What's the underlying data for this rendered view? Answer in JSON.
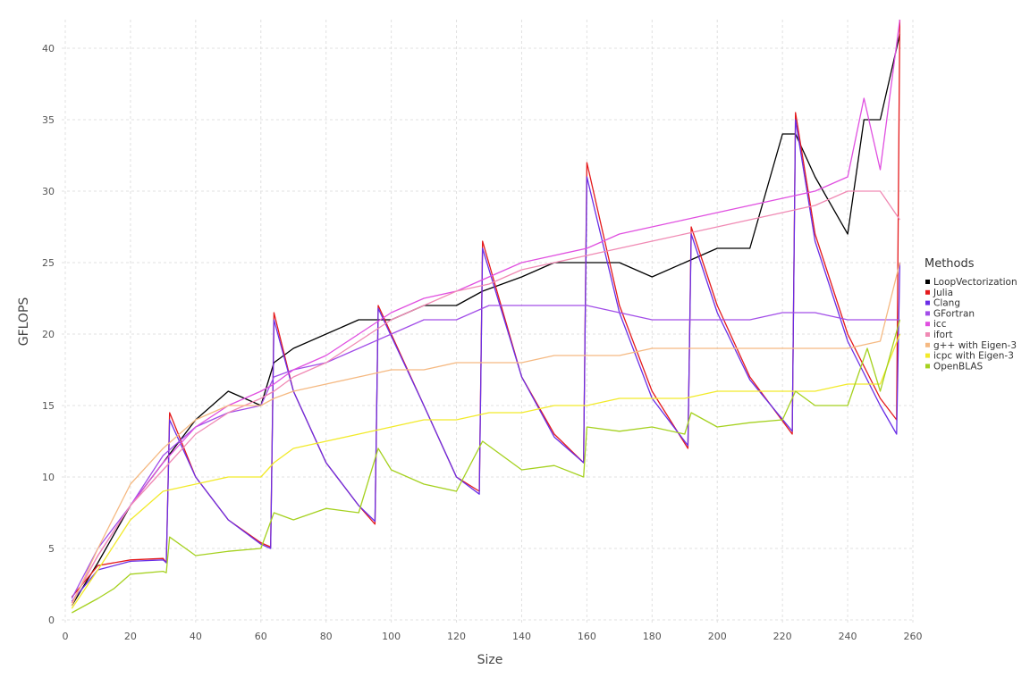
{
  "chart_data": {
    "type": "line",
    "title": "",
    "xlabel": "Size",
    "ylabel": "GFLOPS",
    "xlim": [
      0,
      260
    ],
    "ylim": [
      0,
      42
    ],
    "xticks": [
      0,
      20,
      40,
      60,
      80,
      100,
      120,
      140,
      160,
      180,
      200,
      220,
      240,
      260
    ],
    "yticks": [
      0,
      5,
      10,
      15,
      20,
      25,
      30,
      35,
      40
    ],
    "grid": true,
    "legend": {
      "title": "Methods",
      "position": "right"
    },
    "series": [
      {
        "name": "LoopVectorization",
        "color": "#000000",
        "points": [
          [
            2,
            1
          ],
          [
            10,
            4
          ],
          [
            20,
            8
          ],
          [
            30,
            11
          ],
          [
            40,
            14
          ],
          [
            50,
            16
          ],
          [
            60,
            15
          ],
          [
            64,
            18
          ],
          [
            70,
            19
          ],
          [
            80,
            20
          ],
          [
            90,
            21
          ],
          [
            96,
            21
          ],
          [
            100,
            21
          ],
          [
            110,
            22
          ],
          [
            120,
            22
          ],
          [
            128,
            23
          ],
          [
            140,
            24
          ],
          [
            150,
            25
          ],
          [
            160,
            25
          ],
          [
            170,
            25
          ],
          [
            180,
            24
          ],
          [
            190,
            25
          ],
          [
            200,
            26
          ],
          [
            210,
            26
          ],
          [
            220,
            34
          ],
          [
            224,
            34
          ],
          [
            230,
            31
          ],
          [
            240,
            27
          ],
          [
            245,
            35
          ],
          [
            250,
            35
          ],
          [
            255,
            40
          ],
          [
            256,
            41
          ]
        ]
      },
      {
        "name": "Julia",
        "color": "#e41a1c",
        "points": [
          [
            2,
            1.6
          ],
          [
            10,
            3.8
          ],
          [
            20,
            4.2
          ],
          [
            30,
            4.3
          ],
          [
            31,
            4
          ],
          [
            32,
            14.5
          ],
          [
            40,
            10
          ],
          [
            50,
            7
          ],
          [
            60,
            5.4
          ],
          [
            63,
            5.1
          ],
          [
            64,
            21.5
          ],
          [
            70,
            16
          ],
          [
            80,
            11
          ],
          [
            90,
            8
          ],
          [
            95,
            6.7
          ],
          [
            96,
            22
          ],
          [
            110,
            15
          ],
          [
            120,
            10
          ],
          [
            127,
            9
          ],
          [
            128,
            26.5
          ],
          [
            140,
            17
          ],
          [
            150,
            13
          ],
          [
            159,
            11
          ],
          [
            160,
            32
          ],
          [
            170,
            22
          ],
          [
            180,
            16
          ],
          [
            191,
            12
          ],
          [
            192,
            27.5
          ],
          [
            200,
            22
          ],
          [
            210,
            17
          ],
          [
            223,
            13
          ],
          [
            224,
            35.5
          ],
          [
            230,
            27
          ],
          [
            240,
            20
          ],
          [
            250,
            15.5
          ],
          [
            255,
            14
          ],
          [
            256,
            42
          ]
        ]
      },
      {
        "name": "Clang",
        "color": "#6a2ee6",
        "points": [
          [
            2,
            1.3
          ],
          [
            10,
            3.5
          ],
          [
            20,
            4.1
          ],
          [
            30,
            4.2
          ],
          [
            31,
            4
          ],
          [
            32,
            14
          ],
          [
            40,
            10
          ],
          [
            50,
            7
          ],
          [
            60,
            5.3
          ],
          [
            63,
            5
          ],
          [
            64,
            21
          ],
          [
            70,
            16
          ],
          [
            80,
            11
          ],
          [
            90,
            8
          ],
          [
            95,
            6.9
          ],
          [
            96,
            21.8
          ],
          [
            110,
            15
          ],
          [
            120,
            10
          ],
          [
            127,
            8.8
          ],
          [
            128,
            26
          ],
          [
            140,
            17
          ],
          [
            150,
            12.8
          ],
          [
            159,
            11
          ],
          [
            160,
            31
          ],
          [
            170,
            21.5
          ],
          [
            180,
            15.5
          ],
          [
            191,
            12.2
          ],
          [
            192,
            27
          ],
          [
            200,
            21.5
          ],
          [
            210,
            16.8
          ],
          [
            223,
            13.2
          ],
          [
            224,
            35
          ],
          [
            230,
            26.5
          ],
          [
            240,
            19.5
          ],
          [
            250,
            15
          ],
          [
            255,
            13
          ],
          [
            256,
            25
          ]
        ]
      },
      {
        "name": "GFortran",
        "color": "#a24ee8",
        "points": [
          [
            2,
            1.5
          ],
          [
            10,
            5
          ],
          [
            20,
            8
          ],
          [
            30,
            11.5
          ],
          [
            40,
            13.5
          ],
          [
            50,
            14.5
          ],
          [
            60,
            15
          ],
          [
            64,
            17
          ],
          [
            70,
            17.5
          ],
          [
            80,
            18
          ],
          [
            90,
            19
          ],
          [
            100,
            20
          ],
          [
            110,
            21
          ],
          [
            120,
            21
          ],
          [
            130,
            22
          ],
          [
            140,
            22
          ],
          [
            150,
            22
          ],
          [
            160,
            22
          ],
          [
            170,
            21.5
          ],
          [
            180,
            21
          ],
          [
            190,
            21
          ],
          [
            200,
            21
          ],
          [
            210,
            21
          ],
          [
            220,
            21.5
          ],
          [
            230,
            21.5
          ],
          [
            240,
            21
          ],
          [
            250,
            21
          ],
          [
            256,
            21
          ]
        ]
      },
      {
        "name": "icc",
        "color": "#e050e0",
        "points": [
          [
            2,
            1.2
          ],
          [
            10,
            4.5
          ],
          [
            20,
            8
          ],
          [
            30,
            11
          ],
          [
            40,
            13.5
          ],
          [
            50,
            15
          ],
          [
            60,
            16
          ],
          [
            64,
            16.5
          ],
          [
            70,
            17.5
          ],
          [
            80,
            18.5
          ],
          [
            90,
            20
          ],
          [
            100,
            21.5
          ],
          [
            110,
            22.5
          ],
          [
            120,
            23
          ],
          [
            130,
            24
          ],
          [
            140,
            25
          ],
          [
            150,
            25.5
          ],
          [
            160,
            26
          ],
          [
            170,
            27
          ],
          [
            180,
            27.5
          ],
          [
            190,
            28
          ],
          [
            200,
            28.5
          ],
          [
            210,
            29
          ],
          [
            220,
            29.5
          ],
          [
            230,
            30
          ],
          [
            240,
            31
          ],
          [
            245,
            36.5
          ],
          [
            250,
            31.5
          ],
          [
            256,
            42
          ]
        ]
      },
      {
        "name": "ifort",
        "color": "#f08ab4",
        "points": [
          [
            2,
            1.2
          ],
          [
            10,
            4.5
          ],
          [
            20,
            8
          ],
          [
            30,
            10.5
          ],
          [
            40,
            13
          ],
          [
            50,
            14.5
          ],
          [
            60,
            15.5
          ],
          [
            64,
            16
          ],
          [
            70,
            17
          ],
          [
            80,
            18
          ],
          [
            90,
            19.5
          ],
          [
            100,
            21
          ],
          [
            110,
            22
          ],
          [
            120,
            23
          ],
          [
            130,
            23.5
          ],
          [
            140,
            24.5
          ],
          [
            150,
            25
          ],
          [
            160,
            25.5
          ],
          [
            170,
            26
          ],
          [
            180,
            26.5
          ],
          [
            190,
            27
          ],
          [
            200,
            27.5
          ],
          [
            210,
            28
          ],
          [
            220,
            28.5
          ],
          [
            230,
            29
          ],
          [
            240,
            30
          ],
          [
            250,
            30
          ],
          [
            256,
            28
          ]
        ]
      },
      {
        "name": "g++ with Eigen-3",
        "color": "#f5b982",
        "points": [
          [
            2,
            1
          ],
          [
            10,
            5
          ],
          [
            20,
            9.5
          ],
          [
            30,
            12
          ],
          [
            40,
            14
          ],
          [
            50,
            15
          ],
          [
            60,
            15
          ],
          [
            64,
            15.5
          ],
          [
            70,
            16
          ],
          [
            80,
            16.5
          ],
          [
            90,
            17
          ],
          [
            100,
            17.5
          ],
          [
            110,
            17.5
          ],
          [
            120,
            18
          ],
          [
            130,
            18
          ],
          [
            140,
            18
          ],
          [
            150,
            18.5
          ],
          [
            160,
            18.5
          ],
          [
            170,
            18.5
          ],
          [
            180,
            19
          ],
          [
            190,
            19
          ],
          [
            200,
            19
          ],
          [
            210,
            19
          ],
          [
            220,
            19
          ],
          [
            230,
            19
          ],
          [
            240,
            19
          ],
          [
            250,
            19.5
          ],
          [
            256,
            25
          ]
        ]
      },
      {
        "name": "icpc with Eigen-3",
        "color": "#f2ea2a",
        "points": [
          [
            2,
            0.8
          ],
          [
            10,
            3.5
          ],
          [
            20,
            7
          ],
          [
            30,
            9
          ],
          [
            40,
            9.5
          ],
          [
            50,
            10
          ],
          [
            60,
            10
          ],
          [
            64,
            11
          ],
          [
            70,
            12
          ],
          [
            80,
            12.5
          ],
          [
            90,
            13
          ],
          [
            100,
            13.5
          ],
          [
            110,
            14
          ],
          [
            120,
            14
          ],
          [
            130,
            14.5
          ],
          [
            140,
            14.5
          ],
          [
            150,
            15
          ],
          [
            160,
            15
          ],
          [
            170,
            15.5
          ],
          [
            180,
            15.5
          ],
          [
            190,
            15.5
          ],
          [
            200,
            16
          ],
          [
            210,
            16
          ],
          [
            220,
            16
          ],
          [
            230,
            16
          ],
          [
            240,
            16.5
          ],
          [
            250,
            16.5
          ],
          [
            256,
            20
          ]
        ]
      },
      {
        "name": "OpenBLAS",
        "color": "#a5d11f",
        "points": [
          [
            2,
            0.5
          ],
          [
            10,
            1.5
          ],
          [
            15,
            2.2
          ],
          [
            20,
            3.2
          ],
          [
            30,
            3.4
          ],
          [
            31,
            3.3
          ],
          [
            32,
            5.8
          ],
          [
            40,
            4.5
          ],
          [
            50,
            4.8
          ],
          [
            60,
            5
          ],
          [
            64,
            7.5
          ],
          [
            70,
            7
          ],
          [
            80,
            7.8
          ],
          [
            90,
            7.5
          ],
          [
            96,
            12
          ],
          [
            100,
            10.5
          ],
          [
            110,
            9.5
          ],
          [
            120,
            9
          ],
          [
            128,
            12.5
          ],
          [
            140,
            10.5
          ],
          [
            150,
            10.8
          ],
          [
            159,
            10
          ],
          [
            160,
            13.5
          ],
          [
            170,
            13.2
          ],
          [
            180,
            13.5
          ],
          [
            190,
            13
          ],
          [
            192,
            14.5
          ],
          [
            200,
            13.5
          ],
          [
            210,
            13.8
          ],
          [
            220,
            14
          ],
          [
            224,
            16
          ],
          [
            230,
            15
          ],
          [
            240,
            15
          ],
          [
            246,
            19
          ],
          [
            250,
            16
          ],
          [
            256,
            21
          ]
        ]
      }
    ]
  }
}
